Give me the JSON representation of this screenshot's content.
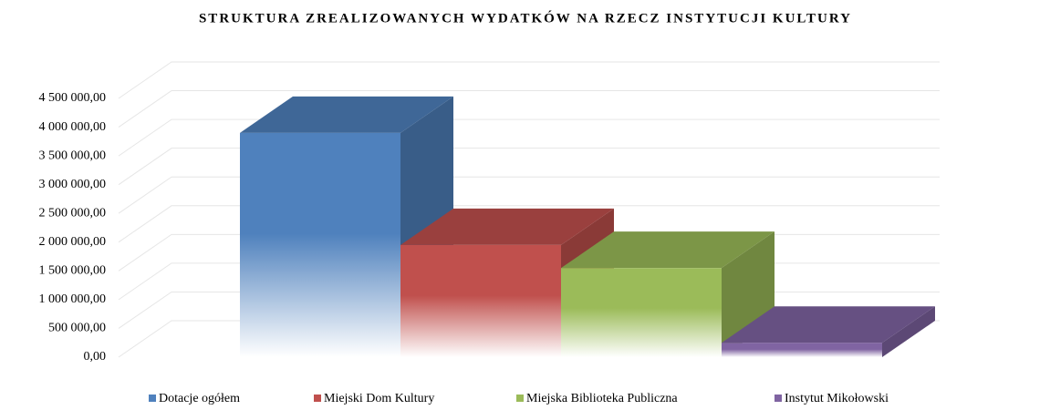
{
  "chart_data": {
    "type": "bar3d",
    "title": "STRUKTURA ZREALIZOWANYCH WYDATKÓW NA RZECZ INSTYTUCJI KULTURY",
    "series": [
      {
        "name": "Dotacje ogółem",
        "color": "#4f81bd",
        "values": [
          3900000
        ]
      },
      {
        "name": "Miejski Dom Kultury",
        "color": "#c0504d",
        "values": [
          1950000
        ]
      },
      {
        "name": "Miejska Biblioteka Publiczna",
        "color": "#9bbb59",
        "values": [
          1550000
        ]
      },
      {
        "name": "Instytut Mikołowski",
        "color": "#8064a2",
        "values": [
          250000
        ]
      }
    ],
    "ylim": [
      0,
      4500000
    ],
    "yticks": [
      {
        "value": 0,
        "label": "0,00"
      },
      {
        "value": 500000,
        "label": "500 000,00"
      },
      {
        "value": 1000000,
        "label": "1 000 000,00"
      },
      {
        "value": 1500000,
        "label": "1 500 000,00"
      },
      {
        "value": 2000000,
        "label": "2 000 000,00"
      },
      {
        "value": 2500000,
        "label": "2 500 000,00"
      },
      {
        "value": 3000000,
        "label": "3 000 000,00"
      },
      {
        "value": 3500000,
        "label": "3 500 000,00"
      },
      {
        "value": 4000000,
        "label": "4 000 000,00"
      },
      {
        "value": 4500000,
        "label": "4 500 000,00"
      }
    ],
    "grid": true,
    "legend": "bottom"
  }
}
